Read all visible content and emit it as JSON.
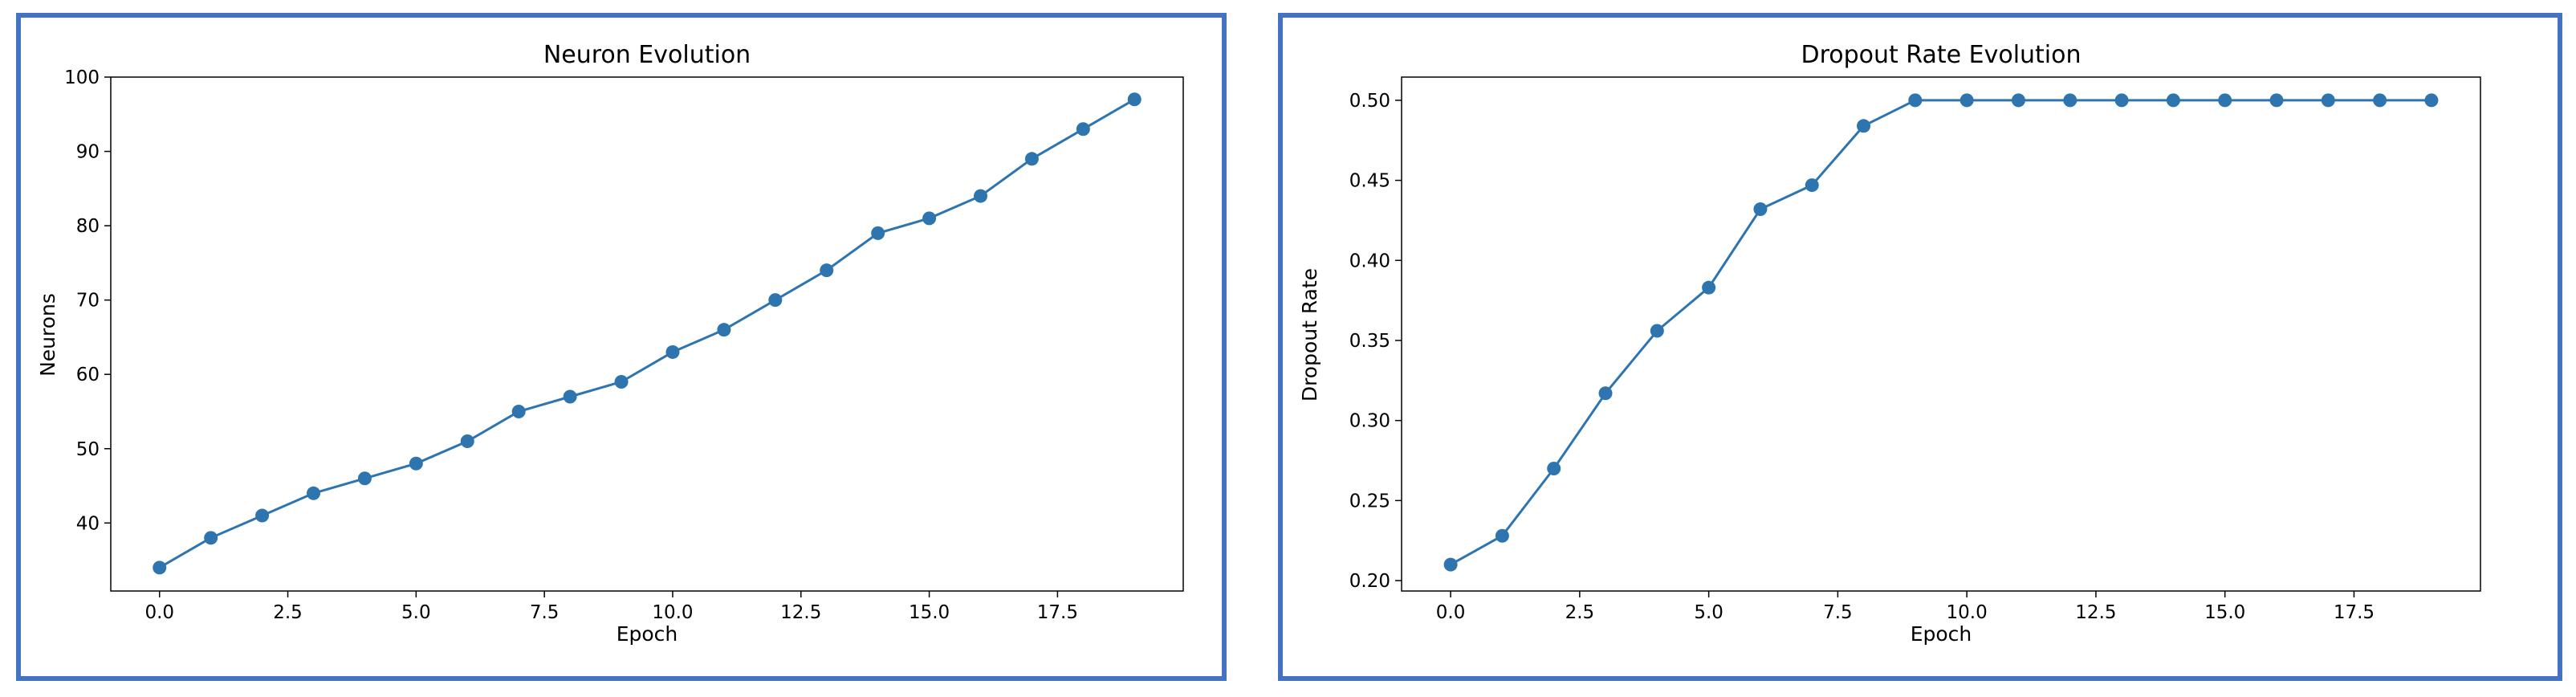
{
  "chart_data": [
    {
      "type": "line",
      "title": "Neuron Evolution",
      "xlabel": "Epoch",
      "ylabel": "Neurons",
      "x": [
        0,
        1,
        2,
        3,
        4,
        5,
        6,
        7,
        8,
        9,
        10,
        11,
        12,
        13,
        14,
        15,
        16,
        17,
        18,
        19
      ],
      "series": [
        {
          "values": [
            34,
            38,
            41,
            44,
            46,
            48,
            51,
            55,
            57,
            59,
            63,
            66,
            70,
            74,
            79,
            81,
            84,
            89,
            93,
            97
          ]
        }
      ],
      "xlim": [
        -0.95,
        19.95
      ],
      "ylim": [
        30.85,
        100
      ],
      "xticks": [
        0,
        2.5,
        5,
        7.5,
        10,
        12.5,
        15,
        17.5
      ],
      "xtick_labels": [
        "0.0",
        "2.5",
        "5.0",
        "7.5",
        "10.0",
        "12.5",
        "15.0",
        "17.5"
      ],
      "yticks": [
        40,
        50,
        60,
        70,
        80,
        90,
        100
      ],
      "ytick_labels": [
        "40",
        "50",
        "60",
        "70",
        "80",
        "90",
        "100"
      ],
      "grid": false,
      "color": "#2e75b0"
    },
    {
      "type": "line",
      "title": "Dropout Rate Evolution",
      "xlabel": "Epoch",
      "ylabel": "Dropout Rate",
      "x": [
        0,
        1,
        2,
        3,
        4,
        5,
        6,
        7,
        8,
        9,
        10,
        11,
        12,
        13,
        14,
        15,
        16,
        17,
        18,
        19
      ],
      "series": [
        {
          "values": [
            0.21,
            0.228,
            0.27,
            0.317,
            0.356,
            0.383,
            0.432,
            0.447,
            0.484,
            0.5,
            0.5,
            0.5,
            0.5,
            0.5,
            0.5,
            0.5,
            0.5,
            0.5,
            0.5,
            0.5
          ]
        }
      ],
      "xlim": [
        -0.95,
        19.95
      ],
      "ylim": [
        0.1935,
        0.5145
      ],
      "xticks": [
        0,
        2.5,
        5,
        7.5,
        10,
        12.5,
        15,
        17.5
      ],
      "xtick_labels": [
        "0.0",
        "2.5",
        "5.0",
        "7.5",
        "10.0",
        "12.5",
        "15.0",
        "17.5"
      ],
      "yticks": [
        0.2,
        0.25,
        0.3,
        0.35,
        0.4,
        0.45,
        0.5
      ],
      "ytick_labels": [
        "0.20",
        "0.25",
        "0.30",
        "0.35",
        "0.40",
        "0.45",
        "0.50"
      ],
      "grid": false,
      "color": "#2e75b0"
    }
  ]
}
